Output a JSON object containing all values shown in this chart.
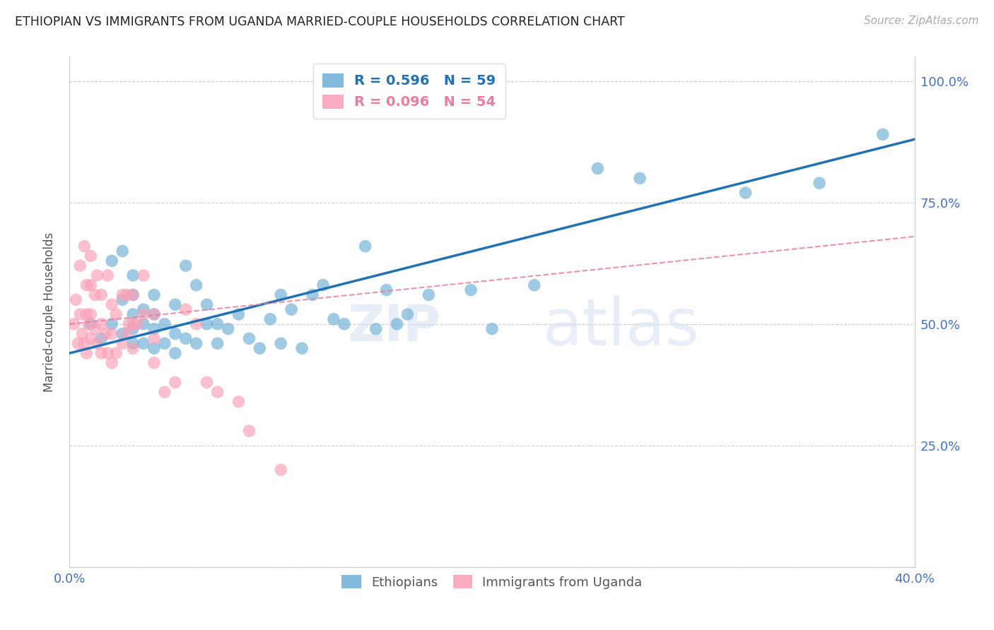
{
  "title": "ETHIOPIAN VS IMMIGRANTS FROM UGANDA MARRIED-COUPLE HOUSEHOLDS CORRELATION CHART",
  "source": "Source: ZipAtlas.com",
  "ylabel": "Married-couple Households",
  "watermark": "ZIPatlas",
  "xlim": [
    0.0,
    0.4
  ],
  "ylim": [
    0.0,
    1.05
  ],
  "yticks": [
    0.0,
    0.25,
    0.5,
    0.75,
    1.0
  ],
  "ytick_labels": [
    "",
    "25.0%",
    "50.0%",
    "75.0%",
    "100.0%"
  ],
  "xticks": [
    0.0,
    0.05,
    0.1,
    0.15,
    0.2,
    0.25,
    0.3,
    0.35,
    0.4
  ],
  "xtick_labels": [
    "0.0%",
    "",
    "",
    "",
    "",
    "",
    "",
    "",
    "40.0%"
  ],
  "blue_R": 0.596,
  "blue_N": 59,
  "pink_R": 0.096,
  "pink_N": 54,
  "blue_color": "#6baed6",
  "pink_color": "#fa9fb5",
  "blue_line_color": "#2171b5",
  "pink_line_color": "#e87ea1",
  "axis_color": "#4472C4",
  "grid_color": "#c8c8c8",
  "title_color": "#222222",
  "blue_points_x": [
    0.01,
    0.015,
    0.02,
    0.02,
    0.025,
    0.025,
    0.025,
    0.03,
    0.03,
    0.03,
    0.03,
    0.03,
    0.035,
    0.035,
    0.035,
    0.04,
    0.04,
    0.04,
    0.04,
    0.045,
    0.045,
    0.05,
    0.05,
    0.05,
    0.055,
    0.055,
    0.06,
    0.06,
    0.065,
    0.065,
    0.07,
    0.07,
    0.075,
    0.08,
    0.085,
    0.09,
    0.095,
    0.1,
    0.1,
    0.105,
    0.11,
    0.115,
    0.12,
    0.125,
    0.13,
    0.14,
    0.145,
    0.15,
    0.155,
    0.16,
    0.17,
    0.19,
    0.2,
    0.22,
    0.25,
    0.27,
    0.32,
    0.355,
    0.385
  ],
  "blue_points_y": [
    0.5,
    0.47,
    0.5,
    0.63,
    0.48,
    0.55,
    0.65,
    0.46,
    0.49,
    0.52,
    0.56,
    0.6,
    0.46,
    0.5,
    0.53,
    0.45,
    0.49,
    0.52,
    0.56,
    0.46,
    0.5,
    0.44,
    0.48,
    0.54,
    0.47,
    0.62,
    0.46,
    0.58,
    0.5,
    0.54,
    0.46,
    0.5,
    0.49,
    0.52,
    0.47,
    0.45,
    0.51,
    0.56,
    0.46,
    0.53,
    0.45,
    0.56,
    0.58,
    0.51,
    0.5,
    0.66,
    0.49,
    0.57,
    0.5,
    0.52,
    0.56,
    0.57,
    0.49,
    0.58,
    0.82,
    0.8,
    0.77,
    0.79,
    0.89
  ],
  "pink_points_x": [
    0.002,
    0.003,
    0.004,
    0.005,
    0.005,
    0.006,
    0.007,
    0.007,
    0.008,
    0.008,
    0.008,
    0.009,
    0.01,
    0.01,
    0.01,
    0.01,
    0.012,
    0.012,
    0.013,
    0.013,
    0.015,
    0.015,
    0.015,
    0.017,
    0.018,
    0.018,
    0.02,
    0.02,
    0.02,
    0.022,
    0.022,
    0.025,
    0.025,
    0.027,
    0.027,
    0.028,
    0.03,
    0.03,
    0.03,
    0.032,
    0.035,
    0.035,
    0.04,
    0.04,
    0.04,
    0.045,
    0.05,
    0.055,
    0.06,
    0.065,
    0.07,
    0.08,
    0.085,
    0.1
  ],
  "pink_points_y": [
    0.5,
    0.55,
    0.46,
    0.52,
    0.62,
    0.48,
    0.46,
    0.66,
    0.44,
    0.52,
    0.58,
    0.5,
    0.47,
    0.52,
    0.58,
    0.64,
    0.49,
    0.56,
    0.46,
    0.6,
    0.44,
    0.5,
    0.56,
    0.48,
    0.44,
    0.6,
    0.42,
    0.48,
    0.54,
    0.44,
    0.52,
    0.46,
    0.56,
    0.48,
    0.56,
    0.5,
    0.45,
    0.5,
    0.56,
    0.5,
    0.52,
    0.6,
    0.42,
    0.47,
    0.52,
    0.36,
    0.38,
    0.53,
    0.5,
    0.38,
    0.36,
    0.34,
    0.28,
    0.2
  ]
}
